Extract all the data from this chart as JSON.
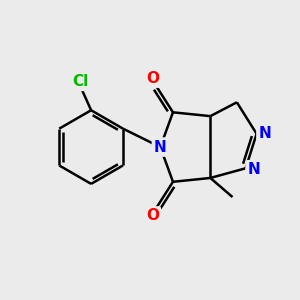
{
  "bg_color": "#ebebeb",
  "atom_colors": {
    "C": "#000000",
    "N": "#0000ff",
    "O": "#ff0000",
    "Cl": "#00bb00",
    "H": "#000000"
  },
  "bond_color": "#000000",
  "bond_width": 1.8,
  "font_size_atoms": 11,
  "fig_width": 3.0,
  "fig_height": 3.0,
  "dpi": 100
}
